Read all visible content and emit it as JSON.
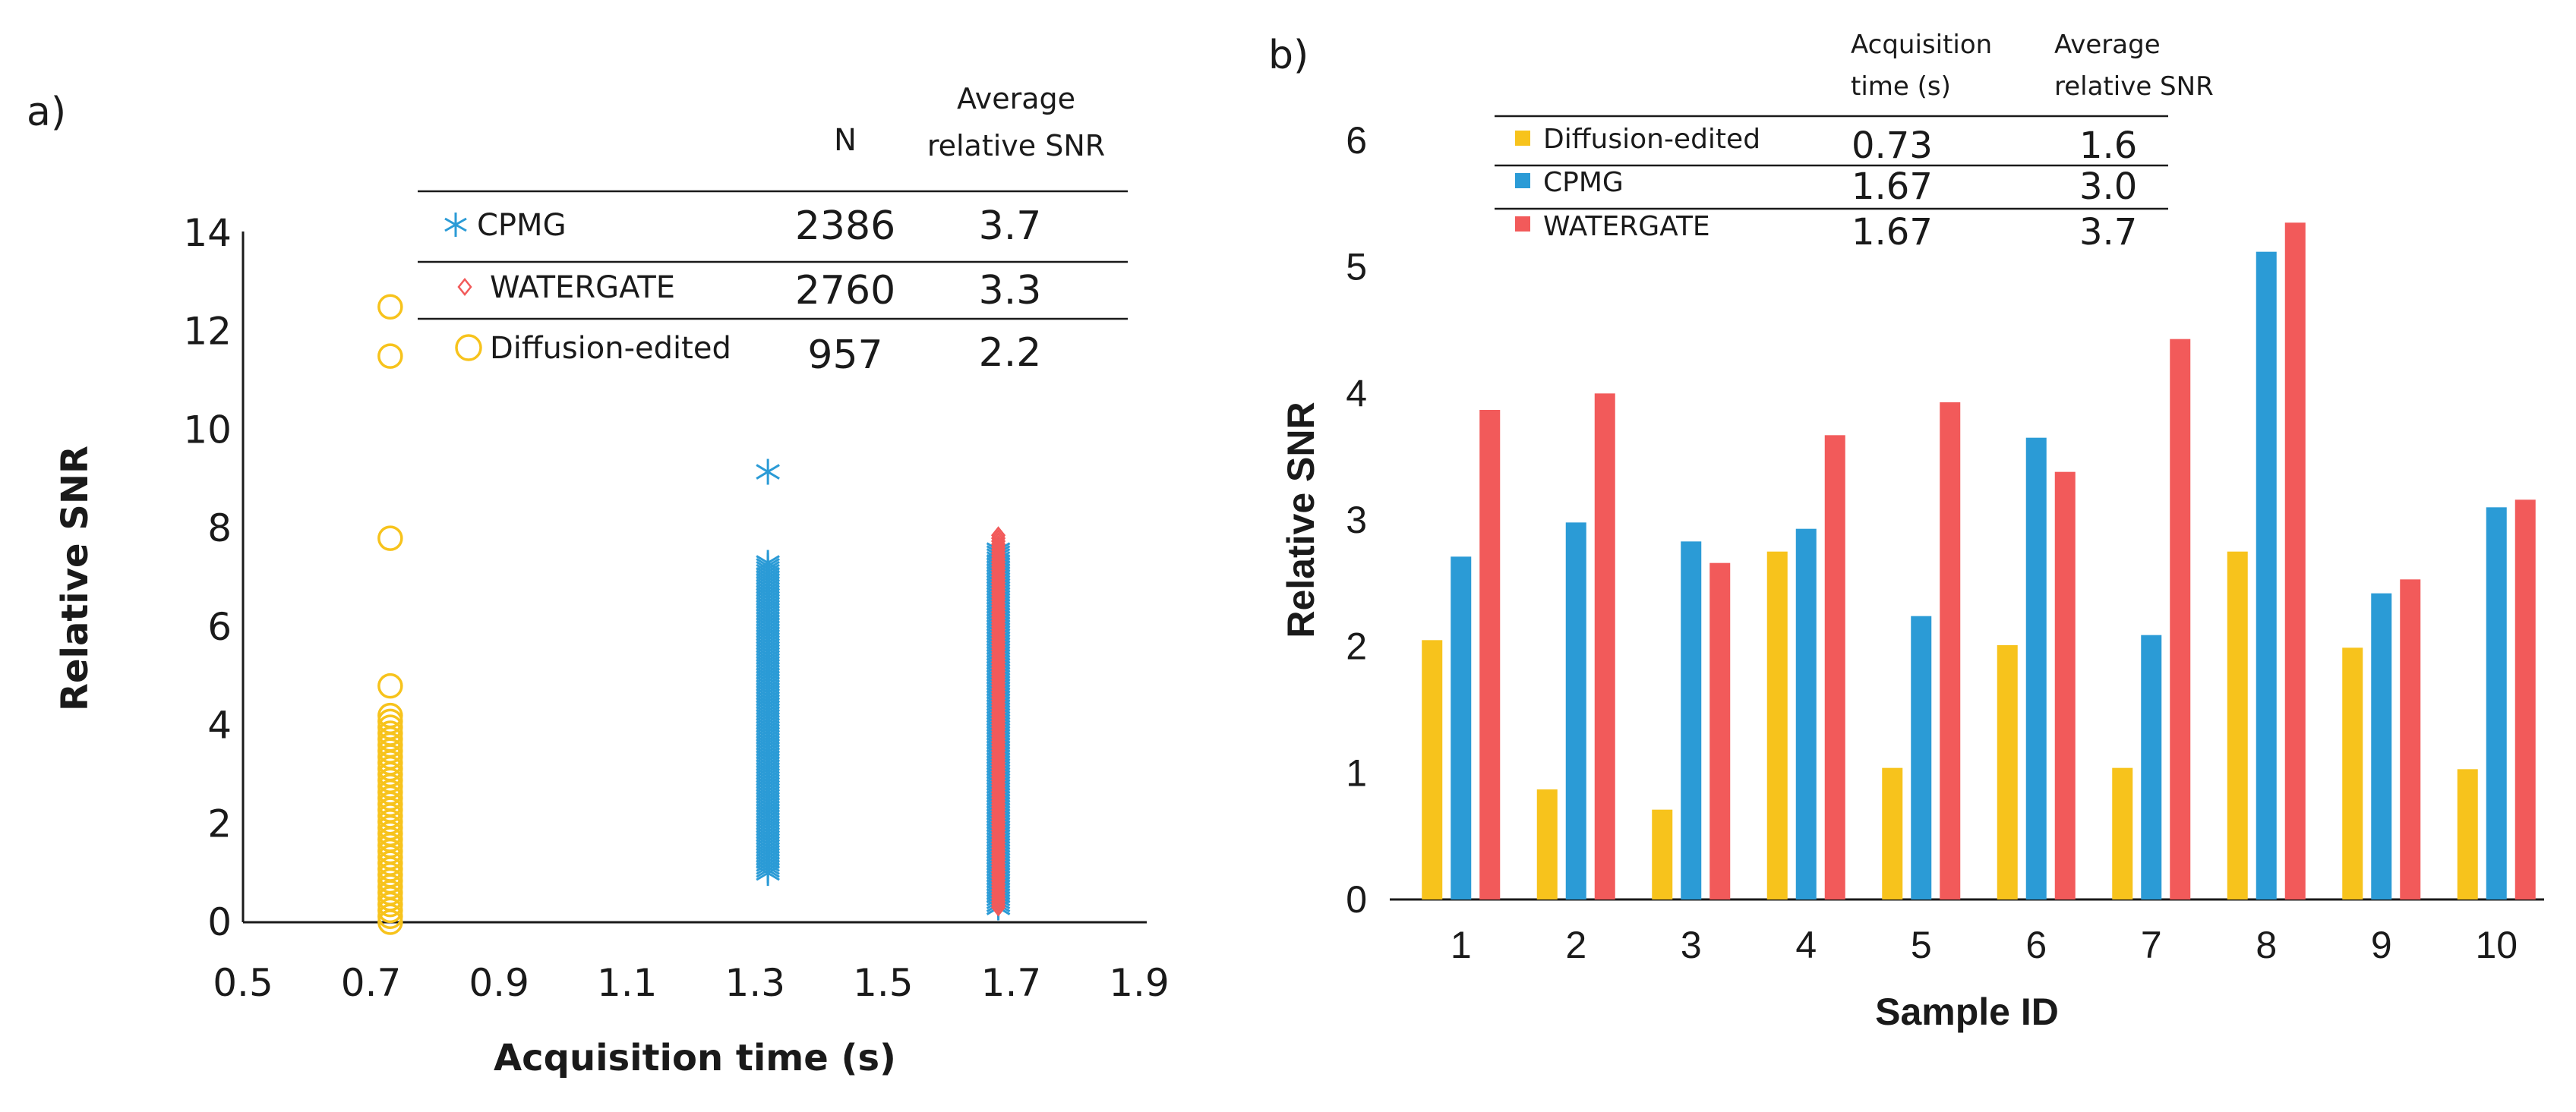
{
  "colors": {
    "cpmg": "#2b9bd6",
    "watergate": "#f25a5a",
    "diffusion": "#f7c31c",
    "axis": "#1a1a1a"
  },
  "chart_data": [
    {
      "panel_label": "a)",
      "type": "scatter",
      "title": "",
      "xlabel": "Acquisition time (s)",
      "ylabel": "Relative SNR",
      "xlim": [
        0.5,
        1.9
      ],
      "ylim": [
        0,
        14
      ],
      "xticks": [
        "0.5",
        "0.7",
        "0.9",
        "1.1",
        "1.3",
        "1.5",
        "1.7",
        "1.9"
      ],
      "yticks": [
        "0",
        "2",
        "4",
        "6",
        "8",
        "10",
        "12",
        "14"
      ],
      "grid": false,
      "legend_table": {
        "headers": [
          "N",
          "Average relative SNR"
        ],
        "header_lines": [
          [
            "N"
          ],
          [
            "Average",
            "relative SNR"
          ]
        ],
        "rows": [
          {
            "name": "CPMG",
            "n": "2386",
            "avg": "3.7"
          },
          {
            "name": "WATERGATE",
            "n": "2760",
            "avg": "3.3"
          },
          {
            "name": "Diffusion-edited",
            "n": "957",
            "avg": "2.2"
          }
        ]
      },
      "series": [
        {
          "name": "Diffusion-edited",
          "marker": "circle",
          "x": 0.73,
          "range": [
            0.0,
            4.3
          ],
          "outliers": [
            12.5,
            11.5,
            7.8,
            4.8
          ]
        },
        {
          "name": "CPMG",
          "marker": "asterisk",
          "x": 1.32,
          "range": [
            1.0,
            7.3
          ],
          "outliers": [
            9.15
          ]
        },
        {
          "name": "CPMG",
          "marker": "asterisk",
          "x": 1.68,
          "range": [
            0.3,
            7.6
          ],
          "outliers": []
        },
        {
          "name": "WATERGATE",
          "marker": "diamond",
          "x": 1.68,
          "range": [
            0.3,
            7.9
          ],
          "outliers": []
        }
      ]
    },
    {
      "panel_label": "b)",
      "type": "bar",
      "title": "",
      "xlabel": "Sample ID",
      "ylabel": "Relative SNR",
      "ylim": [
        0,
        6
      ],
      "yticks": [
        "0",
        "1",
        "2",
        "3",
        "4",
        "5",
        "6"
      ],
      "grid": false,
      "categories": [
        "1",
        "2",
        "3",
        "4",
        "5",
        "6",
        "7",
        "8",
        "9",
        "10"
      ],
      "series": [
        {
          "name": "Diffusion-edited",
          "values": [
            2.05,
            0.87,
            0.71,
            2.75,
            1.04,
            2.01,
            1.04,
            2.75,
            1.99,
            1.03
          ]
        },
        {
          "name": "CPMG",
          "values": [
            2.71,
            2.98,
            2.83,
            2.93,
            2.24,
            3.65,
            2.09,
            5.12,
            2.42,
            3.1
          ]
        },
        {
          "name": "WATERGATE",
          "values": [
            3.87,
            4.0,
            2.66,
            3.67,
            3.93,
            3.38,
            4.43,
            5.35,
            2.53,
            3.16
          ]
        }
      ],
      "legend_table": {
        "headers": [
          "Acquisition time (s)",
          "Average relative SNR"
        ],
        "header_lines": [
          [
            "Acquisition",
            "time (s)"
          ],
          [
            "Average",
            "relative SNR"
          ]
        ],
        "rows": [
          {
            "name": "Diffusion-edited",
            "time": "0.73",
            "avg": "1.6"
          },
          {
            "name": "CPMG",
            "time": "1.67",
            "avg": "3.0"
          },
          {
            "name": "WATERGATE",
            "time": "1.67",
            "avg": "3.7"
          }
        ]
      }
    }
  ]
}
